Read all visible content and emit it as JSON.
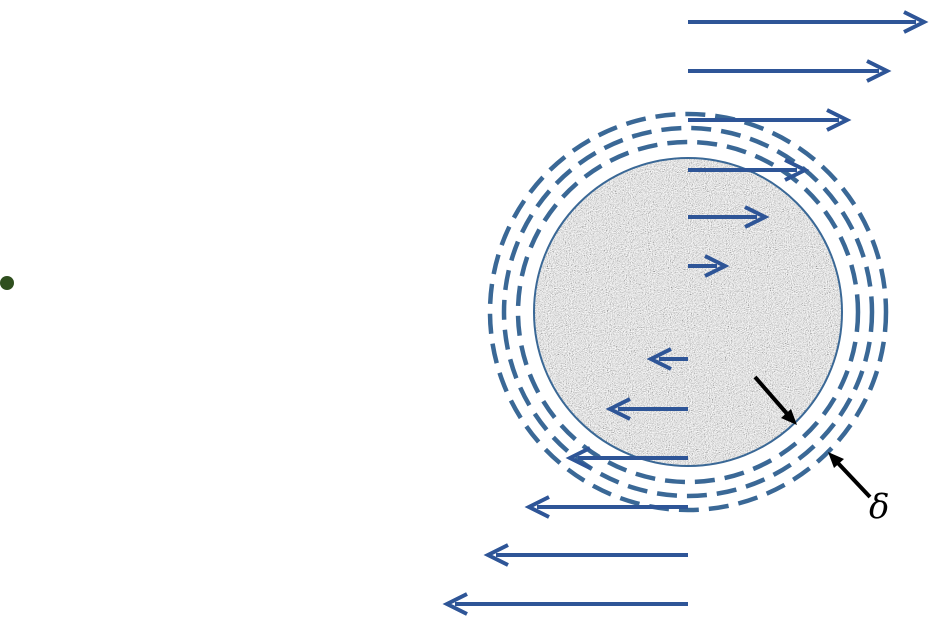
{
  "labels": {
    "delta": "δ"
  },
  "colors": {
    "flow_arrow": "#2E5597",
    "boundary_layer_dash": "#3A6896",
    "particle_outline": "#3A6896",
    "thickness_arrow": "#000000",
    "dot": "#2F4F1E",
    "texture_base": "#9E9E9E"
  },
  "icons": {
    "particle": "textured-sphere",
    "velocity_arrow": "arrow-horizontal",
    "thickness_marker": "arrow-diagonal"
  }
}
